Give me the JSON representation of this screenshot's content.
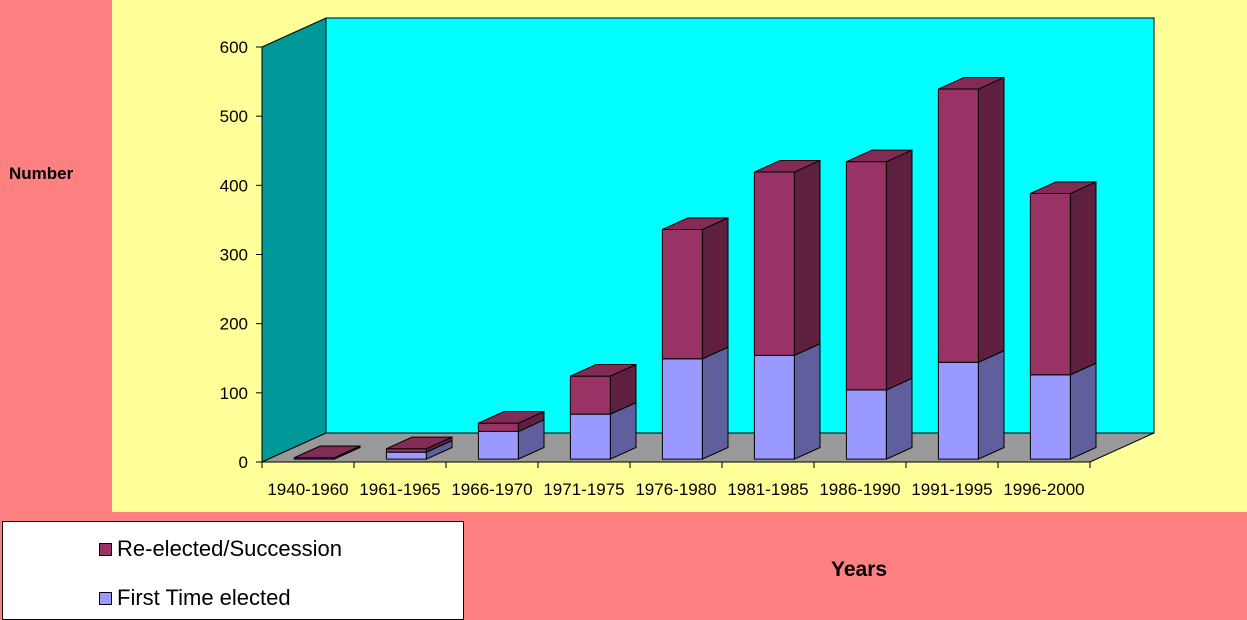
{
  "chart_data": {
    "type": "bar",
    "stacked": true,
    "three_d": true,
    "categories": [
      "1940-1960",
      "1961-1965",
      "1966-1970",
      "1971-1975",
      "1976-1980",
      "1981-1985",
      "1986-1990",
      "1991-1995",
      "1996-2000"
    ],
    "series": [
      {
        "name": "First Time elected",
        "color": "#9999ff",
        "values": [
          2,
          10,
          40,
          65,
          145,
          150,
          100,
          140,
          122
        ]
      },
      {
        "name": "Re-elected/Succession",
        "color": "#993366",
        "values": [
          0,
          5,
          12,
          55,
          187,
          265,
          330,
          395,
          262
        ]
      }
    ],
    "ylabel": "Number",
    "xlabel": "Years",
    "ylim": [
      0,
      600
    ],
    "yticks": [
      0,
      100,
      200,
      300,
      400,
      500,
      600
    ],
    "legend_position": "bottom-left",
    "colors": {
      "background": "#ff8080",
      "plot_area": "#ffff99",
      "back_wall": "#00ffff",
      "side_wall": "#009999",
      "floor": "#999999"
    }
  }
}
